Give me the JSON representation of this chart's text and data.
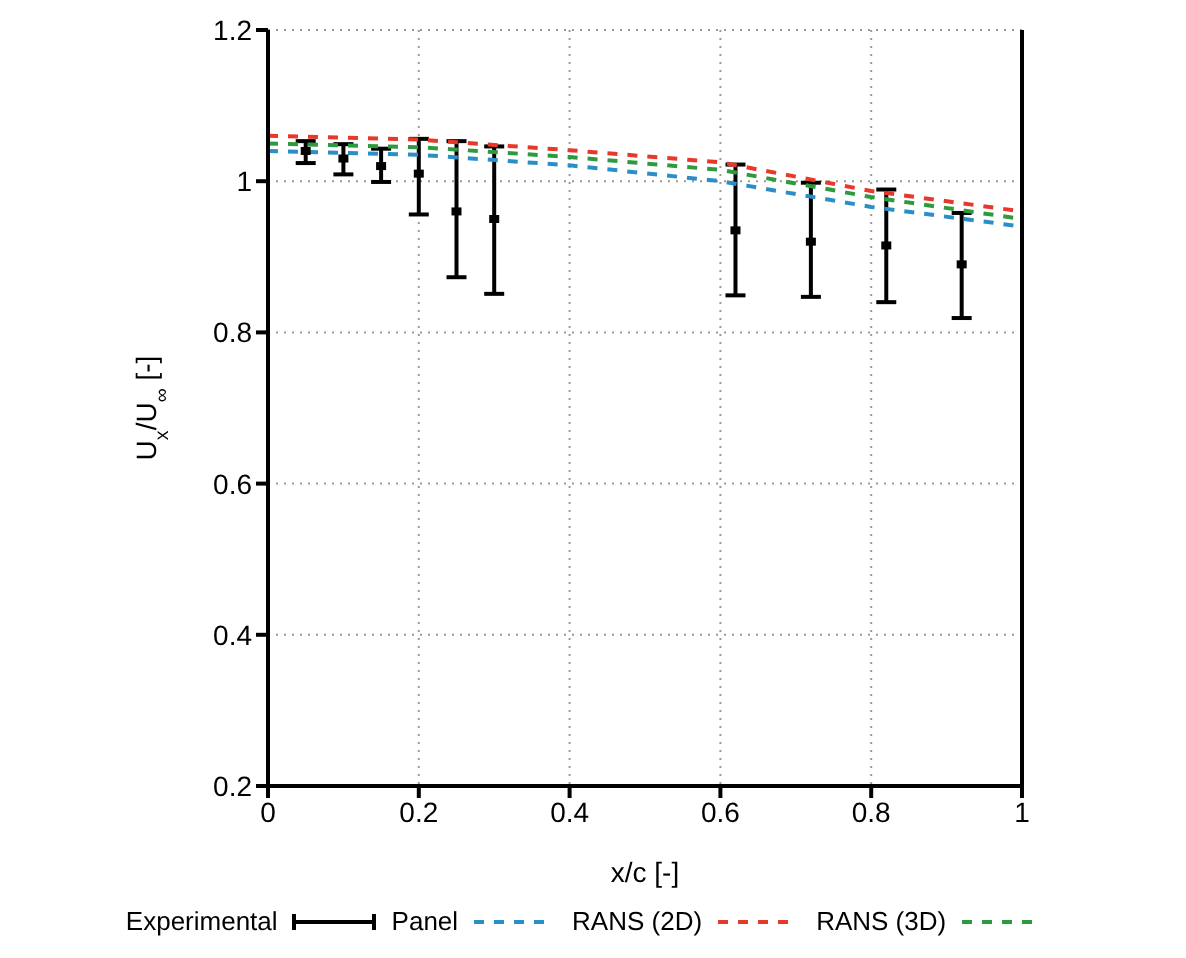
{
  "chart_data": {
    "type": "line",
    "xlabel": "x/c [-]",
    "ylabel": "U$_{x}$/U$_{∞}$ [-]",
    "xlim": [
      0,
      1
    ],
    "xticks": [
      0,
      0.2,
      0.4,
      0.6,
      0.8,
      1
    ],
    "ylim": [
      0.2,
      1.2
    ],
    "yticks": [
      0.2,
      0.4,
      0.6,
      0.8,
      1,
      1.2
    ],
    "grid": true,
    "legend": "bottom",
    "line_style": "dashed",
    "series": [
      {
        "name": "Experimental",
        "type": "scatter",
        "color": "#000000",
        "x": [
          0.05,
          0.1,
          0.15,
          0.2,
          0.25,
          0.3,
          0.62,
          0.72,
          0.82,
          0.92
        ],
        "values": [
          1.04,
          1.03,
          1.02,
          1.01,
          0.96,
          0.95,
          0.935,
          0.92,
          0.915,
          0.89
        ],
        "errors": [
          [
            1.024,
            1.053
          ],
          [
            1.009,
            1.049
          ],
          [
            0.999,
            1.043
          ],
          [
            0.956,
            1.056
          ],
          [
            0.873,
            1.053
          ],
          [
            0.851,
            1.046
          ],
          [
            0.849,
            1.022
          ],
          [
            0.847,
            0.998
          ],
          [
            0.84,
            0.989
          ],
          [
            0.819,
            0.958
          ]
        ]
      },
      {
        "name": "Panel",
        "type": "line",
        "color": "#2a8fc7",
        "x": [
          0,
          0.2,
          0.4,
          0.6,
          0.8,
          1
        ],
        "values": [
          1.04,
          1.035,
          1.021,
          1.0,
          0.966,
          0.94
        ]
      },
      {
        "name": "RANS (2D)",
        "type": "line",
        "color": "#e8382a",
        "x": [
          0,
          0.2,
          0.4,
          0.6,
          0.8,
          1
        ],
        "values": [
          1.06,
          1.055,
          1.041,
          1.025,
          0.987,
          0.96
        ]
      },
      {
        "name": "RANS (3D)",
        "type": "line",
        "color": "#2e9a3f",
        "x": [
          0,
          0.2,
          0.4,
          0.6,
          0.8,
          1
        ],
        "values": [
          1.05,
          1.045,
          1.032,
          1.015,
          0.979,
          0.95
        ]
      }
    ]
  }
}
